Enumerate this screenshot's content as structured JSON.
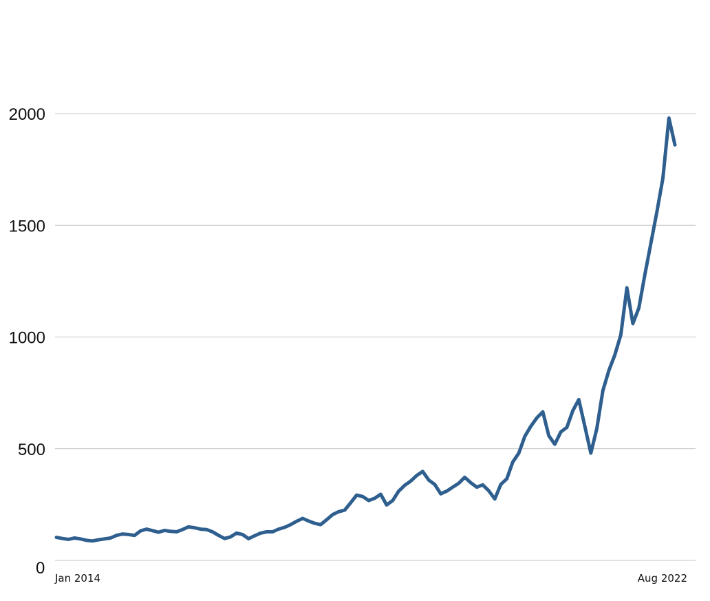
{
  "chart_data": {
    "type": "line",
    "title": "",
    "xlabel": "",
    "ylabel": "",
    "x_ticks": [
      "Jan 2014",
      "Aug 2022"
    ],
    "y_ticks": [
      0,
      500,
      1000,
      1500,
      2000
    ],
    "ylim": [
      0,
      2000
    ],
    "xlim": [
      "2014-01",
      "2022-08"
    ],
    "grid": true,
    "legend": "none",
    "color": "#2f5f8f",
    "series": [
      {
        "x": [
          "2014-01",
          "2014-02",
          "2014-03",
          "2014-04",
          "2014-05",
          "2014-06",
          "2014-07",
          "2014-08",
          "2014-09",
          "2014-10",
          "2014-11",
          "2014-12",
          "2015-01",
          "2015-02",
          "2015-03",
          "2015-04",
          "2015-05",
          "2015-06",
          "2015-07",
          "2015-08",
          "2015-09",
          "2015-10",
          "2015-11",
          "2015-12",
          "2016-01",
          "2016-02",
          "2016-03",
          "2016-04",
          "2016-05",
          "2016-06",
          "2016-07",
          "2016-08",
          "2016-09",
          "2016-10",
          "2016-11",
          "2016-12",
          "2017-01",
          "2017-02",
          "2017-03",
          "2017-04",
          "2017-05",
          "2017-06",
          "2017-07",
          "2017-08",
          "2017-09",
          "2017-10",
          "2017-11",
          "2017-12",
          "2018-01",
          "2018-02",
          "2018-03",
          "2018-04",
          "2018-05",
          "2018-06",
          "2018-07",
          "2018-08",
          "2018-09",
          "2018-10",
          "2018-11",
          "2018-12",
          "2019-01",
          "2019-02",
          "2019-03",
          "2019-04",
          "2019-05",
          "2019-06",
          "2019-07",
          "2019-08",
          "2019-09",
          "2019-10",
          "2019-11",
          "2019-12",
          "2020-01",
          "2020-02",
          "2020-03",
          "2020-04",
          "2020-05",
          "2020-06",
          "2020-07",
          "2020-08",
          "2020-09",
          "2020-10",
          "2020-11",
          "2020-12",
          "2021-01",
          "2021-02",
          "2021-03",
          "2021-04",
          "2021-05",
          "2021-06",
          "2021-07",
          "2021-08",
          "2021-09",
          "2021-10",
          "2021-11",
          "2021-12",
          "2022-01",
          "2022-02",
          "2022-03",
          "2022-04",
          "2022-05",
          "2022-06",
          "2022-07",
          "2022-08"
        ],
        "values": [
          103,
          98,
          94,
          100,
          96,
          90,
          87,
          92,
          96,
          100,
          112,
          118,
          116,
          112,
          132,
          140,
          133,
          126,
          134,
          130,
          128,
          138,
          150,
          146,
          140,
          138,
          128,
          112,
          98,
          105,
          122,
          116,
          97,
          110,
          122,
          128,
          128,
          140,
          148,
          160,
          175,
          188,
          176,
          166,
          160,
          182,
          205,
          218,
          225,
          258,
          292,
          286,
          268,
          278,
          296,
          248,
          268,
          310,
          336,
          355,
          380,
          398,
          360,
          340,
          298,
          310,
          328,
          345,
          372,
          348,
          328,
          338,
          312,
          275,
          340,
          365,
          440,
          480,
          555,
          600,
          638,
          665,
          558,
          520,
          575,
          595,
          670,
          720,
          600,
          480,
          590,
          760,
          850,
          920,
          1010,
          1220,
          1060,
          1130,
          1280,
          1420,
          1560,
          1710,
          1980,
          1860
        ]
      }
    ]
  }
}
